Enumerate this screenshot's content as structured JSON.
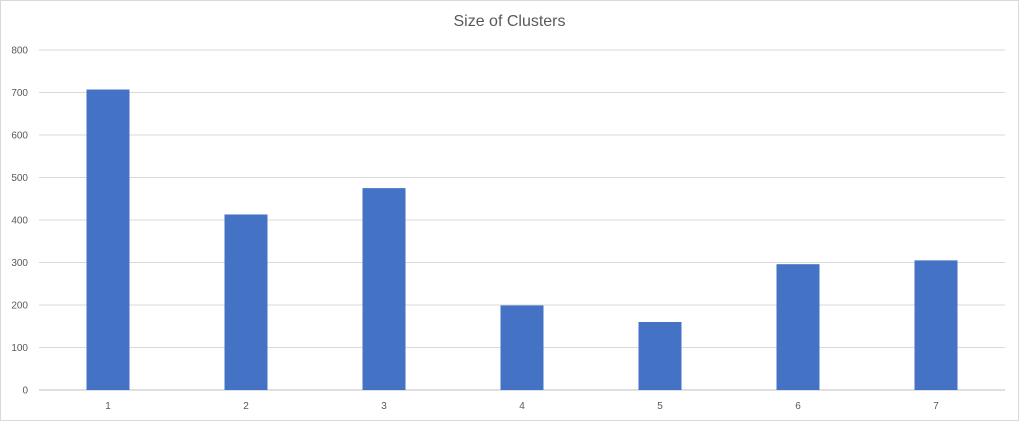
{
  "chart_data": {
    "type": "bar",
    "title": "Size of Clusters",
    "xlabel": "",
    "ylabel": "",
    "categories": [
      "1",
      "2",
      "3",
      "4",
      "5",
      "6",
      "7"
    ],
    "values": [
      707,
      413,
      475,
      199,
      160,
      296,
      305
    ],
    "ylim": [
      0,
      800
    ],
    "yticks": [
      0,
      100,
      200,
      300,
      400,
      500,
      600,
      700,
      800
    ],
    "grid": true,
    "legend": "none",
    "bar_color": "#4472c4",
    "grid_color": "#d9d9d9"
  }
}
